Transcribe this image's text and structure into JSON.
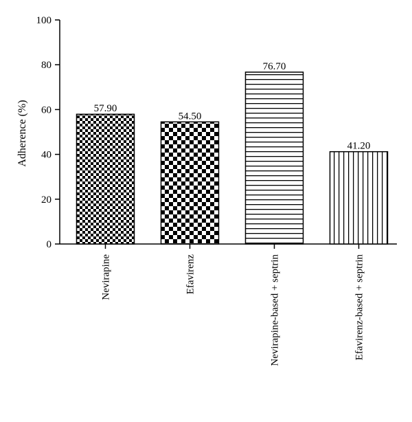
{
  "chart_data": {
    "type": "bar",
    "title": "",
    "xlabel": "",
    "ylabel": "Adherence (%)",
    "ylim": [
      0,
      100
    ],
    "yticks": [
      0,
      20,
      40,
      60,
      80,
      100
    ],
    "grid": false,
    "categories": [
      "Nevirapine",
      "Efavirenz",
      "Nevirapine-based + septrin",
      "Efavirenz-based + septrin"
    ],
    "values": [
      57.9,
      54.5,
      76.7,
      41.2
    ],
    "data_labels": [
      "57.90",
      "54.50",
      "76.70",
      "41.20"
    ],
    "patterns": [
      "fine-checker",
      "coarse-checker",
      "horizontal-lines",
      "vertical-lines"
    ],
    "colors": {
      "ink": "#000000",
      "background": "#ffffff"
    }
  }
}
